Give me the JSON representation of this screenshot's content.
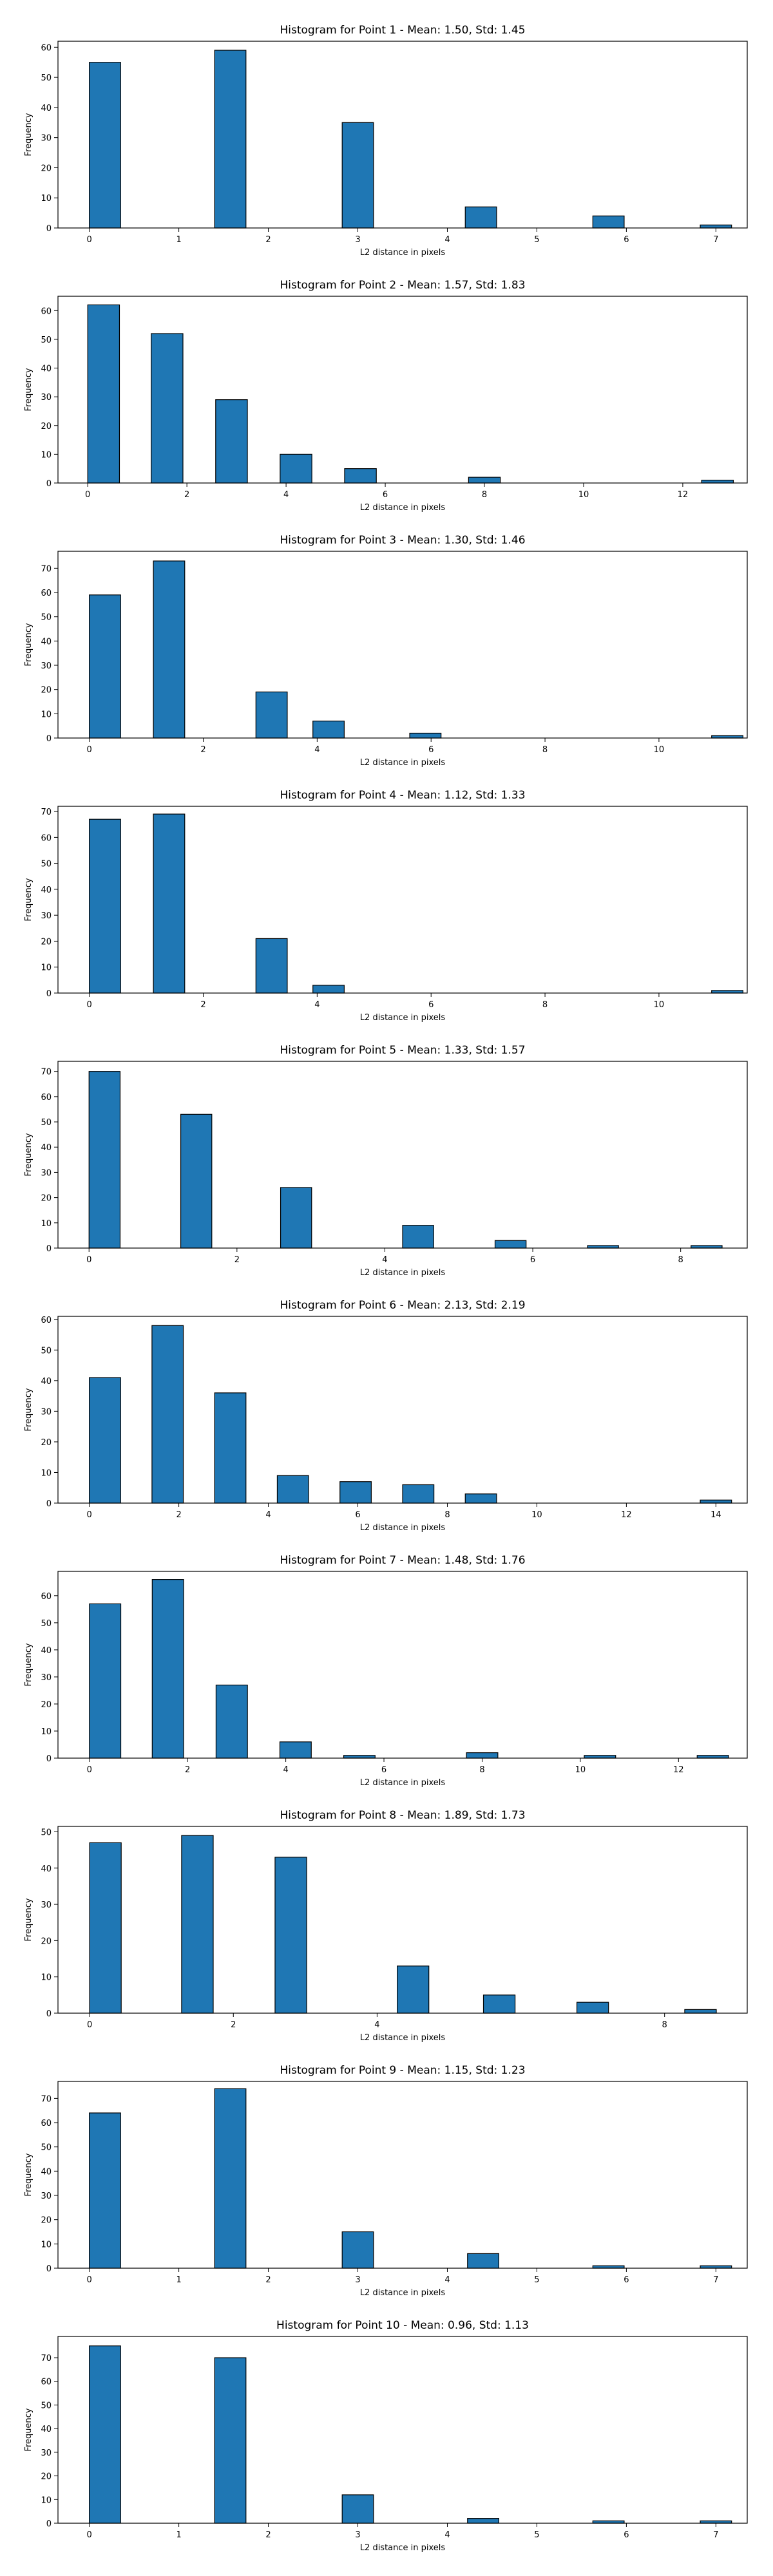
{
  "colors": {
    "bar_fill": "#1f77b4",
    "bar_edge": "#000000",
    "axis": "#000000"
  },
  "chart_data": [
    {
      "type": "bar",
      "title": "Histogram for Point 1 - Mean: 1.50, Std: 1.45",
      "xlabel": "L2 distance in pixels",
      "ylabel": "Frequency",
      "xlim": [
        -0.35,
        7.35
      ],
      "ylim": [
        0,
        62
      ],
      "xticks": [
        0,
        1,
        2,
        3,
        4,
        5,
        6,
        7
      ],
      "yticks": [
        0,
        10,
        20,
        30,
        40,
        50,
        60
      ],
      "bar_width": 0.35,
      "x": [
        0.175,
        1.575,
        3.0,
        4.375,
        5.8,
        7.0
      ],
      "values": [
        55,
        59,
        35,
        7,
        4,
        1
      ]
    },
    {
      "type": "bar",
      "title": "Histogram for Point 2 - Mean: 1.57, Std: 1.83",
      "xlabel": "L2 distance in pixels",
      "ylabel": "Frequency",
      "xlim": [
        -0.6,
        13.3
      ],
      "ylim": [
        0,
        65
      ],
      "xticks": [
        0,
        2,
        4,
        6,
        8,
        10,
        12
      ],
      "yticks": [
        0,
        10,
        20,
        30,
        40,
        50,
        60
      ],
      "bar_width": 0.64,
      "x": [
        0.32,
        1.6,
        2.9,
        4.2,
        5.5,
        8.0,
        12.7
      ],
      "values": [
        62,
        52,
        29,
        10,
        5,
        2,
        1
      ]
    },
    {
      "type": "bar",
      "title": "Histogram for Point 3 - Mean: 1.30, Std: 1.46",
      "xlabel": "L2 distance in pixels",
      "ylabel": "Frequency",
      "xlim": [
        -0.55,
        11.55
      ],
      "ylim": [
        0,
        77
      ],
      "xticks": [
        0,
        2,
        4,
        6,
        8,
        10
      ],
      "yticks": [
        0,
        10,
        20,
        30,
        40,
        50,
        60,
        70
      ],
      "bar_width": 0.55,
      "x": [
        0.275,
        1.4,
        3.2,
        4.2,
        5.9,
        11.2
      ],
      "values": [
        59,
        73,
        19,
        7,
        2,
        1
      ]
    },
    {
      "type": "bar",
      "title": "Histogram for Point 4 - Mean: 1.12, Std: 1.33",
      "xlabel": "L2 distance in pixels",
      "ylabel": "Frequency",
      "xlim": [
        -0.55,
        11.55
      ],
      "ylim": [
        0,
        72
      ],
      "xticks": [
        0,
        2,
        4,
        6,
        8,
        10
      ],
      "yticks": [
        0,
        10,
        20,
        30,
        40,
        50,
        60,
        70
      ],
      "bar_width": 0.55,
      "x": [
        0.275,
        1.4,
        3.2,
        4.2,
        11.2
      ],
      "values": [
        67,
        69,
        21,
        3,
        1
      ]
    },
    {
      "type": "bar",
      "title": "Histogram for Point 5 - Mean: 1.33, Std: 1.57",
      "xlabel": "L2 distance in pixels",
      "ylabel": "Frequency",
      "xlim": [
        -0.42,
        8.9
      ],
      "ylim": [
        0,
        74
      ],
      "xticks": [
        0,
        2,
        4,
        6,
        8
      ],
      "yticks": [
        0,
        10,
        20,
        30,
        40,
        50,
        60,
        70
      ],
      "bar_width": 0.42,
      "x": [
        0.21,
        1.45,
        2.8,
        4.45,
        5.7,
        6.95,
        8.35
      ],
      "values": [
        70,
        53,
        24,
        9,
        3,
        1,
        1
      ]
    },
    {
      "type": "bar",
      "title": "Histogram for Point 6 - Mean: 2.13, Std: 2.19",
      "xlabel": "L2 distance in pixels",
      "ylabel": "Frequency",
      "xlim": [
        -0.7,
        14.7
      ],
      "ylim": [
        0,
        61
      ],
      "xticks": [
        0,
        2,
        4,
        6,
        8,
        10,
        12,
        14
      ],
      "yticks": [
        0,
        10,
        20,
        30,
        40,
        50,
        60
      ],
      "bar_width": 0.7,
      "x": [
        0.35,
        1.75,
        3.15,
        4.55,
        5.95,
        7.35,
        8.75,
        14.0
      ],
      "values": [
        41,
        58,
        36,
        9,
        7,
        6,
        3,
        1
      ]
    },
    {
      "type": "bar",
      "title": "Histogram for Point 7 - Mean: 1.48, Std: 1.76",
      "xlabel": "L2 distance in pixels",
      "ylabel": "Frequency",
      "xlim": [
        -0.64,
        13.4
      ],
      "ylim": [
        0,
        69
      ],
      "xticks": [
        0,
        2,
        4,
        6,
        8,
        10,
        12
      ],
      "yticks": [
        0,
        10,
        20,
        30,
        40,
        50,
        60
      ],
      "bar_width": 0.64,
      "x": [
        0.32,
        1.6,
        2.9,
        4.2,
        5.5,
        8.0,
        10.4,
        12.7
      ],
      "values": [
        57,
        66,
        27,
        6,
        1,
        2,
        1,
        1
      ]
    },
    {
      "type": "bar",
      "title": "Histogram for Point 8 - Mean: 1.89, Std: 1.73",
      "xlabel": "L2 distance in pixels",
      "ylabel": "Frequency",
      "xlim": [
        -0.44,
        9.15
      ],
      "ylim": [
        0,
        51.5
      ],
      "xticks": [
        0,
        2,
        4,
        8
      ],
      "yticks": [
        0,
        10,
        20,
        30,
        40,
        50
      ],
      "bar_width": 0.44,
      "x": [
        0.22,
        1.5,
        2.8,
        4.5,
        5.7,
        7.0,
        8.5
      ],
      "values": [
        47,
        49,
        43,
        13,
        5,
        3,
        1
      ]
    },
    {
      "type": "bar",
      "title": "Histogram for Point 9 - Mean: 1.15, Std: 1.23",
      "xlabel": "L2 distance in pixels",
      "ylabel": "Frequency",
      "xlim": [
        -0.35,
        7.35
      ],
      "ylim": [
        0,
        77
      ],
      "xticks": [
        0,
        1,
        2,
        3,
        4,
        5,
        6,
        7
      ],
      "yticks": [
        0,
        10,
        20,
        30,
        40,
        50,
        60,
        70
      ],
      "bar_width": 0.35,
      "x": [
        0.175,
        1.575,
        3.0,
        4.4,
        5.8,
        7.0
      ],
      "values": [
        64,
        74,
        15,
        6,
        1,
        1
      ]
    },
    {
      "type": "bar",
      "title": "Histogram for Point 10 - Mean: 0.96, Std: 1.13",
      "xlabel": "L2 distance in pixels",
      "ylabel": "Frequency",
      "xlim": [
        -0.35,
        7.35
      ],
      "ylim": [
        0,
        79
      ],
      "xticks": [
        0,
        1,
        2,
        3,
        4,
        5,
        6,
        7
      ],
      "yticks": [
        0,
        10,
        20,
        30,
        40,
        50,
        60,
        70
      ],
      "bar_width": 0.35,
      "x": [
        0.175,
        1.575,
        3.0,
        4.4,
        5.8,
        7.0
      ],
      "values": [
        75,
        70,
        12,
        2,
        1,
        1
      ]
    }
  ]
}
